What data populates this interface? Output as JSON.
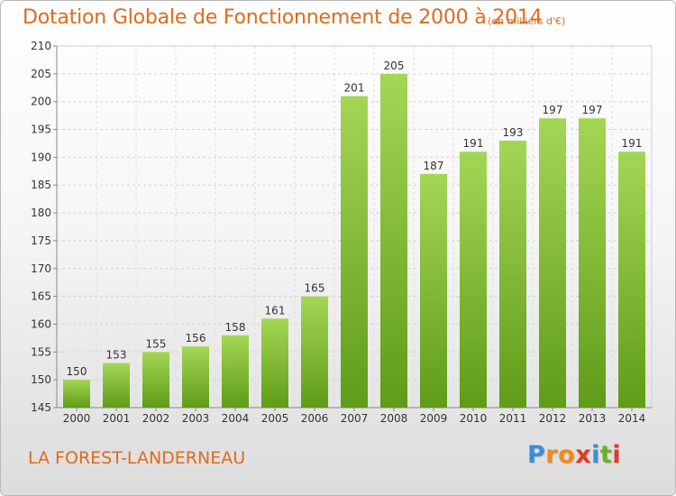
{
  "chart_data": {
    "type": "bar",
    "title": "Dotation Globale de Fonctionnement de 2000 à 2014",
    "subtitle": "(en milliers d'€)",
    "categories": [
      "2000",
      "2001",
      "2002",
      "2003",
      "2004",
      "2005",
      "2006",
      "2007",
      "2008",
      "2009",
      "2010",
      "2011",
      "2012",
      "2013",
      "2014"
    ],
    "values": [
      150,
      153,
      155,
      156,
      158,
      161,
      165,
      201,
      205,
      187,
      191,
      193,
      197,
      197,
      191
    ],
    "ylim": [
      145,
      210
    ],
    "yticks": [
      145,
      150,
      155,
      160,
      165,
      170,
      175,
      180,
      185,
      190,
      195,
      200,
      205,
      210
    ],
    "grid": true,
    "bar_color": "#7dbf2a",
    "xlabel": "",
    "ylabel": ""
  },
  "place_name": "LA FOREST-LANDERNEAU",
  "logo": {
    "letters": [
      "P",
      "r",
      "o",
      "x",
      "i",
      "t",
      "i"
    ],
    "colors": [
      "#3a8fd6",
      "#f08a1c",
      "#f08a1c",
      "#e23a2a",
      "#3a8fd6",
      "#6ab02a",
      "#e23a2a"
    ]
  }
}
